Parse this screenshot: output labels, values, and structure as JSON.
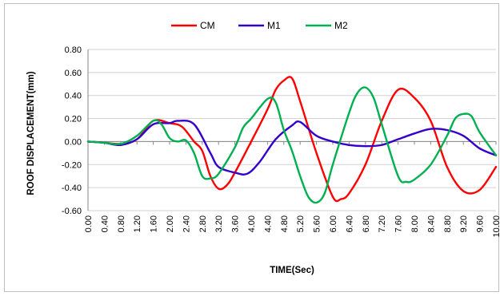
{
  "chart_data": {
    "type": "line",
    "title": "",
    "xlabel": "TIME(Sec)",
    "ylabel": "ROOF DISPLACEMENT(mm)",
    "xlim": [
      0,
      10
    ],
    "ylim": [
      -0.6,
      0.8
    ],
    "x_tick_labels": [
      "0.00",
      "0.40",
      "0.80",
      "1.20",
      "1.60",
      "2.00",
      "2.40",
      "2.80",
      "3.20",
      "3.60",
      "4.00",
      "4.40",
      "4.80",
      "5.20",
      "5.60",
      "6.00",
      "6.40",
      "6.80",
      "7.20",
      "7.60",
      "8.00",
      "8.40",
      "8.80",
      "9.20",
      "9.60",
      "10.00"
    ],
    "y_tick_labels": [
      "-0.60",
      "-0.40",
      "-0.20",
      "0.00",
      "0.20",
      "0.40",
      "0.60",
      "0.80"
    ],
    "y_ticks": [
      -0.6,
      -0.4,
      -0.2,
      0.0,
      0.2,
      0.4,
      0.6,
      0.8
    ],
    "grid": true,
    "legend_position": "top",
    "series": [
      {
        "name": "CM",
        "color": "#ff0000",
        "points": [
          [
            0,
            0
          ],
          [
            0.4,
            -0.01
          ],
          [
            0.8,
            -0.02
          ],
          [
            1.2,
            0.02
          ],
          [
            1.6,
            0.18
          ],
          [
            2.0,
            0.16
          ],
          [
            2.3,
            0.13
          ],
          [
            2.6,
            0.0
          ],
          [
            2.8,
            -0.08
          ],
          [
            3.0,
            -0.3
          ],
          [
            3.2,
            -0.41
          ],
          [
            3.4,
            -0.38
          ],
          [
            3.6,
            -0.27
          ],
          [
            4.0,
            0.0
          ],
          [
            4.4,
            0.28
          ],
          [
            4.6,
            0.45
          ],
          [
            4.8,
            0.53
          ],
          [
            5.0,
            0.55
          ],
          [
            5.2,
            0.35
          ],
          [
            5.6,
            -0.1
          ],
          [
            6.0,
            -0.48
          ],
          [
            6.2,
            -0.5
          ],
          [
            6.4,
            -0.45
          ],
          [
            6.8,
            -0.2
          ],
          [
            7.2,
            0.18
          ],
          [
            7.6,
            0.45
          ],
          [
            8.0,
            0.38
          ],
          [
            8.4,
            0.18
          ],
          [
            8.8,
            -0.22
          ],
          [
            9.2,
            -0.43
          ],
          [
            9.6,
            -0.42
          ],
          [
            10.0,
            -0.22
          ]
        ]
      },
      {
        "name": "M1",
        "color": "#3300cc",
        "points": [
          [
            0,
            0
          ],
          [
            0.4,
            -0.01
          ],
          [
            0.8,
            -0.03
          ],
          [
            1.2,
            0.02
          ],
          [
            1.6,
            0.15
          ],
          [
            2.0,
            0.16
          ],
          [
            2.2,
            0.18
          ],
          [
            2.6,
            0.15
          ],
          [
            3.0,
            -0.1
          ],
          [
            3.2,
            -0.22
          ],
          [
            3.6,
            -0.27
          ],
          [
            3.9,
            -0.28
          ],
          [
            4.2,
            -0.18
          ],
          [
            4.6,
            0.02
          ],
          [
            5.0,
            0.14
          ],
          [
            5.2,
            0.17
          ],
          [
            5.6,
            0.05
          ],
          [
            6.0,
            0.0
          ],
          [
            6.4,
            -0.03
          ],
          [
            6.8,
            -0.04
          ],
          [
            7.2,
            -0.03
          ],
          [
            7.6,
            0.02
          ],
          [
            8.0,
            0.07
          ],
          [
            8.4,
            0.11
          ],
          [
            8.8,
            0.1
          ],
          [
            9.2,
            0.05
          ],
          [
            9.6,
            -0.06
          ],
          [
            10.0,
            -0.12
          ]
        ]
      },
      {
        "name": "M2",
        "color": "#00b050",
        "points": [
          [
            0,
            0
          ],
          [
            0.4,
            -0.01
          ],
          [
            0.8,
            -0.02
          ],
          [
            1.2,
            0.05
          ],
          [
            1.6,
            0.18
          ],
          [
            1.8,
            0.15
          ],
          [
            2.0,
            0.03
          ],
          [
            2.2,
            0.0
          ],
          [
            2.4,
            0.01
          ],
          [
            2.6,
            -0.1
          ],
          [
            2.8,
            -0.3
          ],
          [
            3.0,
            -0.32
          ],
          [
            3.2,
            -0.28
          ],
          [
            3.6,
            -0.05
          ],
          [
            3.8,
            0.12
          ],
          [
            4.0,
            0.2
          ],
          [
            4.4,
            0.37
          ],
          [
            4.6,
            0.34
          ],
          [
            4.8,
            0.1
          ],
          [
            5.0,
            -0.08
          ],
          [
            5.2,
            -0.3
          ],
          [
            5.4,
            -0.48
          ],
          [
            5.6,
            -0.53
          ],
          [
            5.8,
            -0.45
          ],
          [
            6.0,
            -0.2
          ],
          [
            6.4,
            0.25
          ],
          [
            6.6,
            0.42
          ],
          [
            6.8,
            0.47
          ],
          [
            7.0,
            0.38
          ],
          [
            7.2,
            0.15
          ],
          [
            7.6,
            -0.3
          ],
          [
            7.8,
            -0.35
          ],
          [
            8.0,
            -0.33
          ],
          [
            8.4,
            -0.2
          ],
          [
            8.8,
            0.05
          ],
          [
            9.0,
            0.2
          ],
          [
            9.2,
            0.24
          ],
          [
            9.4,
            0.22
          ],
          [
            9.6,
            0.08
          ],
          [
            10.0,
            -0.12
          ]
        ]
      }
    ]
  }
}
